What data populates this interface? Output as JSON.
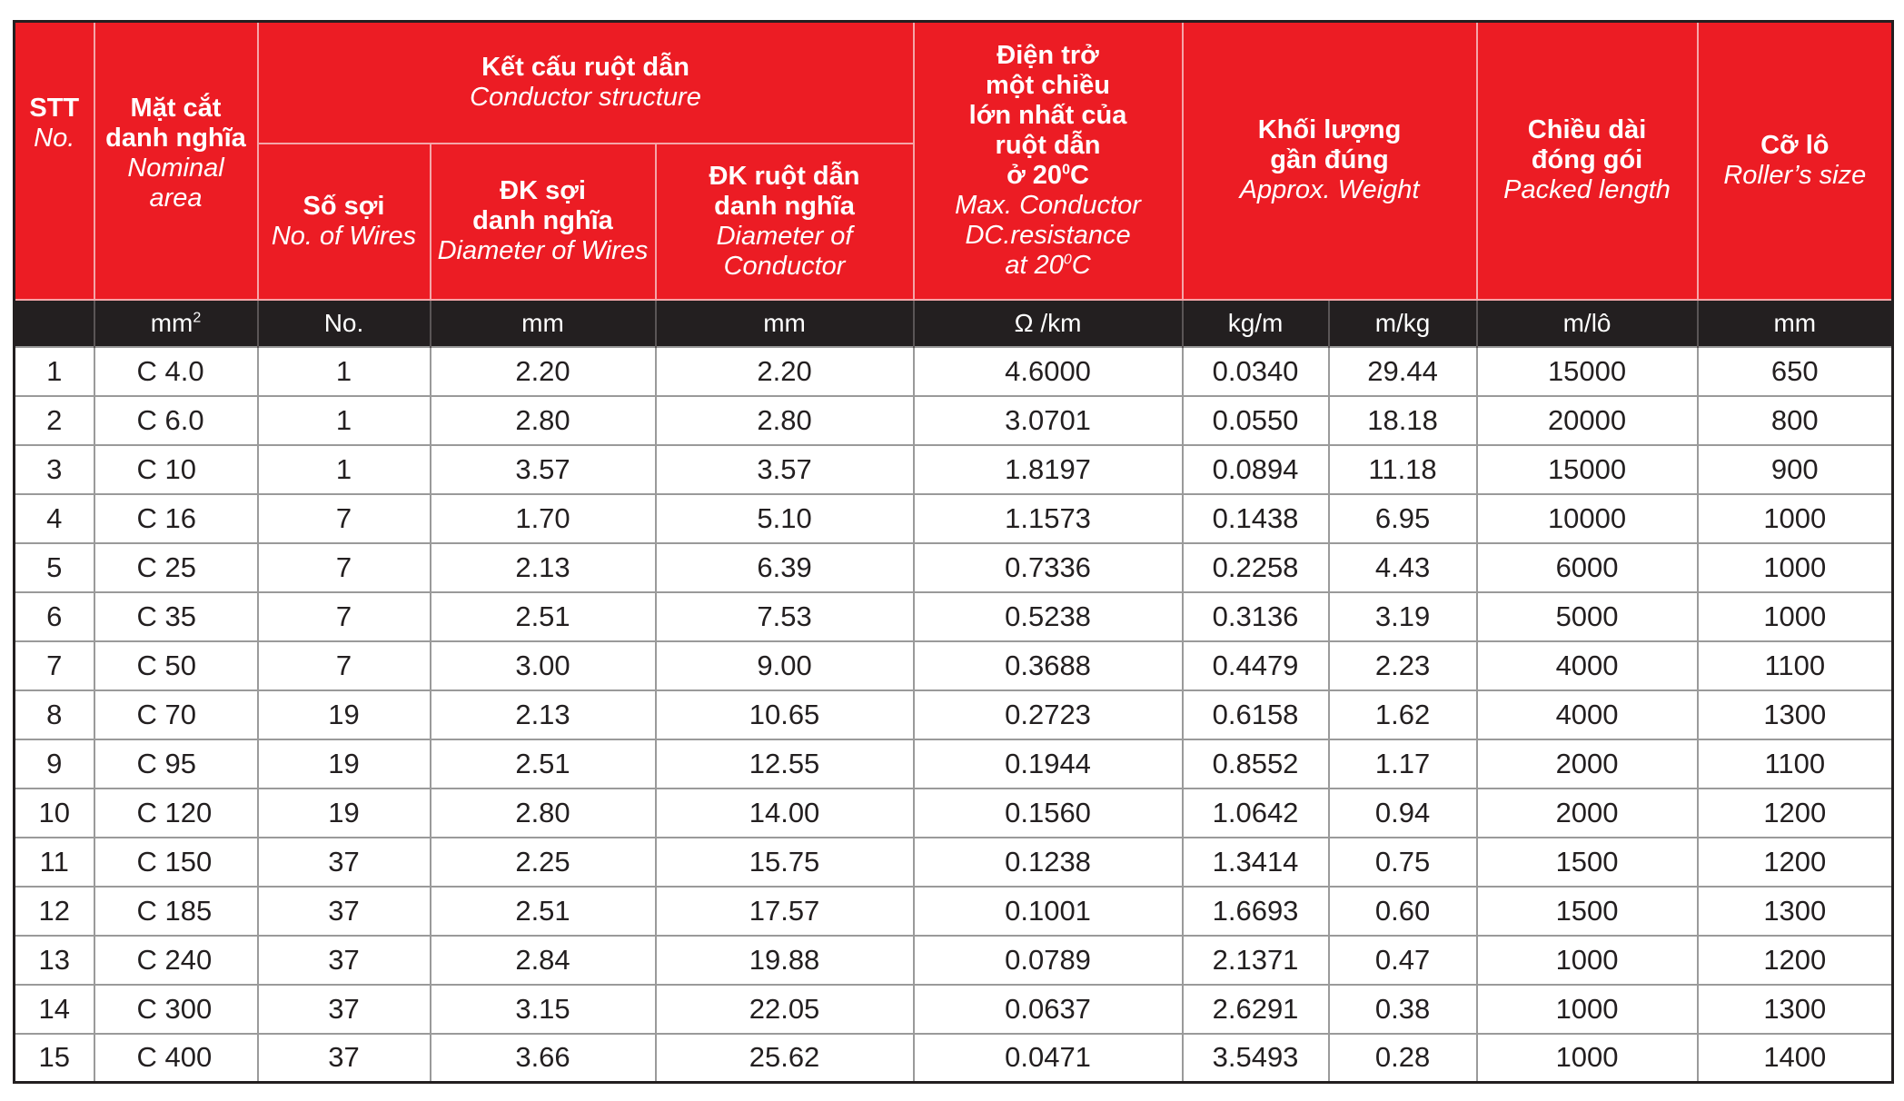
{
  "header": {
    "stt": {
      "vn": "STT",
      "en": "No."
    },
    "area": {
      "vn1": "Mặt cắt",
      "vn2": "danh nghĩa",
      "en1": "Nominal",
      "en2": "area"
    },
    "structure": {
      "vn": "Kết cấu ruột dẫn",
      "en": "Conductor structure"
    },
    "wires": {
      "vn": "Số sợi",
      "en": "No. of Wires"
    },
    "wire_dia": {
      "vn1": "ĐK sợi",
      "vn2": "danh nghĩa",
      "en": "Diameter of Wires"
    },
    "cond_dia": {
      "vn1": "ĐK ruột dẫn",
      "vn2": "danh nghĩa",
      "en": "Diameter of Conductor"
    },
    "resistance": {
      "vn1": "Điện trở",
      "vn2": "một chiều",
      "vn3": "lớn nhất của",
      "vn4": "ruột dẫn",
      "vn5_pre": "ở 20",
      "vn5_sup": "0",
      "vn5_post": "C",
      "en1": "Max. Conductor",
      "en2": "DC.resistance",
      "en3_pre": "at 20",
      "en3_sup": "0",
      "en3_post": "C"
    },
    "weight": {
      "vn1": "Khối lượng",
      "vn2": "gần đúng",
      "en": "Approx. Weight"
    },
    "length": {
      "vn1": "Chiều dài",
      "vn2": "đóng gói",
      "en": "Packed length"
    },
    "roller": {
      "vn": "Cỡ lô",
      "en": "Roller’s size"
    }
  },
  "units": {
    "stt": "",
    "area_pre": "mm",
    "area_sup": "2",
    "wires": "No.",
    "wire_dia": "mm",
    "cond_dia": "mm",
    "resistance": "Ω /km",
    "weight_kgm": "kg/m",
    "weight_mkg": "m/kg",
    "length": "m/lô",
    "roller": "mm"
  },
  "rows": [
    {
      "no": "1",
      "area": "C 4.0",
      "wires": "1",
      "wire_dia": "2.20",
      "cond_dia": "2.20",
      "resistance": "4.6000",
      "kgm": "0.0340",
      "mkg": "29.44",
      "length": "15000",
      "roller": "650"
    },
    {
      "no": "2",
      "area": "C 6.0",
      "wires": "1",
      "wire_dia": "2.80",
      "cond_dia": "2.80",
      "resistance": "3.0701",
      "kgm": "0.0550",
      "mkg": "18.18",
      "length": "20000",
      "roller": "800"
    },
    {
      "no": "3",
      "area": "C 10",
      "wires": "1",
      "wire_dia": "3.57",
      "cond_dia": "3.57",
      "resistance": "1.8197",
      "kgm": "0.0894",
      "mkg": "11.18",
      "length": "15000",
      "roller": "900"
    },
    {
      "no": "4",
      "area": "C 16",
      "wires": "7",
      "wire_dia": "1.70",
      "cond_dia": "5.10",
      "resistance": "1.1573",
      "kgm": "0.1438",
      "mkg": "6.95",
      "length": "10000",
      "roller": "1000"
    },
    {
      "no": "5",
      "area": "C 25",
      "wires": "7",
      "wire_dia": "2.13",
      "cond_dia": "6.39",
      "resistance": "0.7336",
      "kgm": "0.2258",
      "mkg": "4.43",
      "length": "6000",
      "roller": "1000"
    },
    {
      "no": "6",
      "area": "C 35",
      "wires": "7",
      "wire_dia": "2.51",
      "cond_dia": "7.53",
      "resistance": "0.5238",
      "kgm": "0.3136",
      "mkg": "3.19",
      "length": "5000",
      "roller": "1000"
    },
    {
      "no": "7",
      "area": "C 50",
      "wires": "7",
      "wire_dia": "3.00",
      "cond_dia": "9.00",
      "resistance": "0.3688",
      "kgm": "0.4479",
      "mkg": "2.23",
      "length": "4000",
      "roller": "1100"
    },
    {
      "no": "8",
      "area": "C 70",
      "wires": "19",
      "wire_dia": "2.13",
      "cond_dia": "10.65",
      "resistance": "0.2723",
      "kgm": "0.6158",
      "mkg": "1.62",
      "length": "4000",
      "roller": "1300"
    },
    {
      "no": "9",
      "area": "C 95",
      "wires": "19",
      "wire_dia": "2.51",
      "cond_dia": "12.55",
      "resistance": "0.1944",
      "kgm": "0.8552",
      "mkg": "1.17",
      "length": "2000",
      "roller": "1100"
    },
    {
      "no": "10",
      "area": "C 120",
      "wires": "19",
      "wire_dia": "2.80",
      "cond_dia": "14.00",
      "resistance": "0.1560",
      "kgm": "1.0642",
      "mkg": "0.94",
      "length": "2000",
      "roller": "1200"
    },
    {
      "no": "11",
      "area": "C 150",
      "wires": "37",
      "wire_dia": "2.25",
      "cond_dia": "15.75",
      "resistance": "0.1238",
      "kgm": "1.3414",
      "mkg": "0.75",
      "length": "1500",
      "roller": "1200"
    },
    {
      "no": "12",
      "area": "C 185",
      "wires": "37",
      "wire_dia": "2.51",
      "cond_dia": "17.57",
      "resistance": "0.1001",
      "kgm": "1.6693",
      "mkg": "0.60",
      "length": "1500",
      "roller": "1300"
    },
    {
      "no": "13",
      "area": "C 240",
      "wires": "37",
      "wire_dia": "2.84",
      "cond_dia": "19.88",
      "resistance": "0.0789",
      "kgm": "2.1371",
      "mkg": "0.47",
      "length": "1000",
      "roller": "1200"
    },
    {
      "no": "14",
      "area": "C 300",
      "wires": "37",
      "wire_dia": "3.15",
      "cond_dia": "22.05",
      "resistance": "0.0637",
      "kgm": "2.6291",
      "mkg": "0.38",
      "length": "1000",
      "roller": "1300"
    },
    {
      "no": "15",
      "area": "C 400",
      "wires": "37",
      "wire_dia": "3.66",
      "cond_dia": "25.62",
      "resistance": "0.0471",
      "kgm": "3.5493",
      "mkg": "0.28",
      "length": "1000",
      "roller": "1400"
    }
  ],
  "colors": {
    "header_red": "#ec1c24",
    "units_bar": "#231f20",
    "text": "#231f20"
  }
}
